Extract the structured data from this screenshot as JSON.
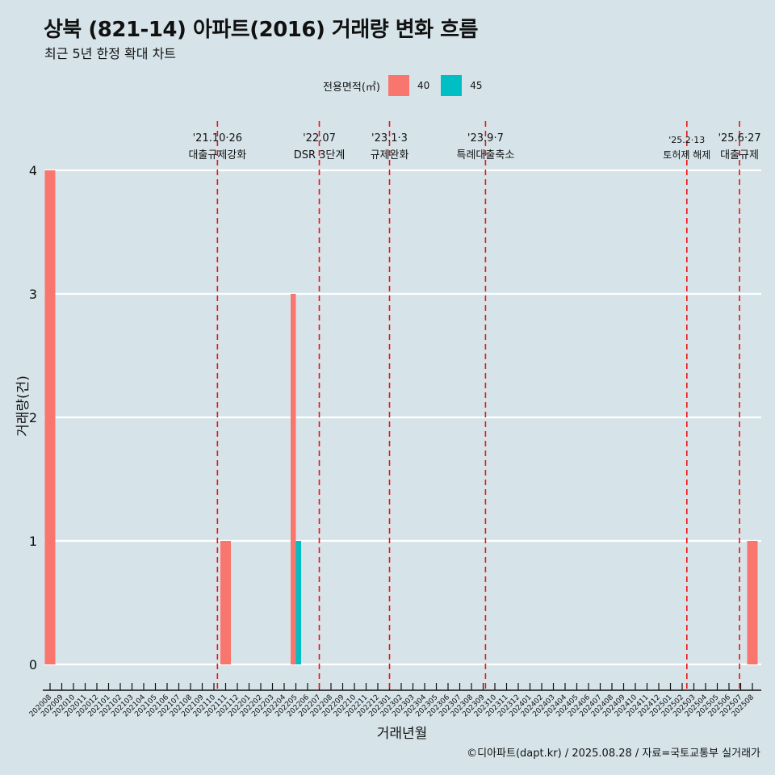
{
  "title": "상북 (821-14) 아파트(2016) 거래량 변화 흐름",
  "subtitle": "최근 5년 한정 확대 차트",
  "legend": {
    "title": "전용면적(㎡)",
    "items": [
      {
        "label": "40",
        "color": "#f8766d"
      },
      {
        "label": "45",
        "color": "#00bfc4"
      }
    ]
  },
  "caption": "©디아파트(dapt.kr) / 2025.08.28 / 자료=국토교통부 실거래가",
  "chart_data": {
    "type": "bar",
    "xlabel": "거래년월",
    "ylabel": "거래량(건)",
    "ylim": [
      0,
      4
    ],
    "yticks": [
      0,
      1,
      2,
      3,
      4
    ],
    "grid": true,
    "legend_position": "top",
    "categories": [
      "202008",
      "202009",
      "202010",
      "202011",
      "202012",
      "202101",
      "202102",
      "202103",
      "202104",
      "202105",
      "202106",
      "202107",
      "202108",
      "202109",
      "202110",
      "202111",
      "202112",
      "202201",
      "202202",
      "202203",
      "202204",
      "202205",
      "202206",
      "202207",
      "202208",
      "202209",
      "202210",
      "202211",
      "202212",
      "202301",
      "202302",
      "202303",
      "202304",
      "202305",
      "202306",
      "202307",
      "202308",
      "202309",
      "202310",
      "202311",
      "202312",
      "202401",
      "202402",
      "202403",
      "202404",
      "202405",
      "202406",
      "202407",
      "202408",
      "202409",
      "202410",
      "202411",
      "202412",
      "202501",
      "202502",
      "202503",
      "202504",
      "202505",
      "202506",
      "202507",
      "202508"
    ],
    "series": [
      {
        "name": "40",
        "color": "#f8766d",
        "values": [
          4,
          0,
          0,
          0,
          0,
          0,
          0,
          0,
          0,
          0,
          0,
          0,
          0,
          0,
          0,
          1,
          0,
          0,
          0,
          0,
          0,
          3,
          0,
          0,
          0,
          0,
          0,
          0,
          0,
          0,
          0,
          0,
          0,
          0,
          0,
          0,
          0,
          0,
          0,
          0,
          0,
          0,
          0,
          0,
          0,
          0,
          0,
          0,
          0,
          0,
          0,
          0,
          0,
          0,
          0,
          0,
          0,
          0,
          0,
          0,
          1
        ]
      },
      {
        "name": "45",
        "color": "#00bfc4",
        "values": [
          0,
          0,
          0,
          0,
          0,
          0,
          0,
          0,
          0,
          0,
          0,
          0,
          0,
          0,
          0,
          0,
          0,
          0,
          0,
          0,
          0,
          1,
          0,
          0,
          0,
          0,
          0,
          0,
          0,
          0,
          0,
          0,
          0,
          0,
          0,
          0,
          0,
          0,
          0,
          0,
          0,
          0,
          0,
          0,
          0,
          0,
          0,
          0,
          0,
          0,
          0,
          0,
          0,
          0,
          0,
          0,
          0,
          0,
          0,
          0,
          0
        ]
      }
    ],
    "annotations": [
      {
        "x": "202110",
        "offset": 0.3,
        "date": "'21.10·26",
        "label": "대출규제강화"
      },
      {
        "x": "202207",
        "offset": 0.0,
        "date": "'22.07",
        "label": "DSR 3단계"
      },
      {
        "x": "202301",
        "offset": 0.0,
        "date": "'23.1·3",
        "label": "규제완화"
      },
      {
        "x": "202309",
        "offset": 0.2,
        "date": "'23.9·7",
        "label": "특례대출축소"
      },
      {
        "x": "202502",
        "offset": 0.4,
        "date": "'25.2·13",
        "label": "토허제 해제"
      },
      {
        "x": "202506",
        "offset": 0.9,
        "date": "'25.6·27",
        "label": "대출규제"
      }
    ]
  }
}
